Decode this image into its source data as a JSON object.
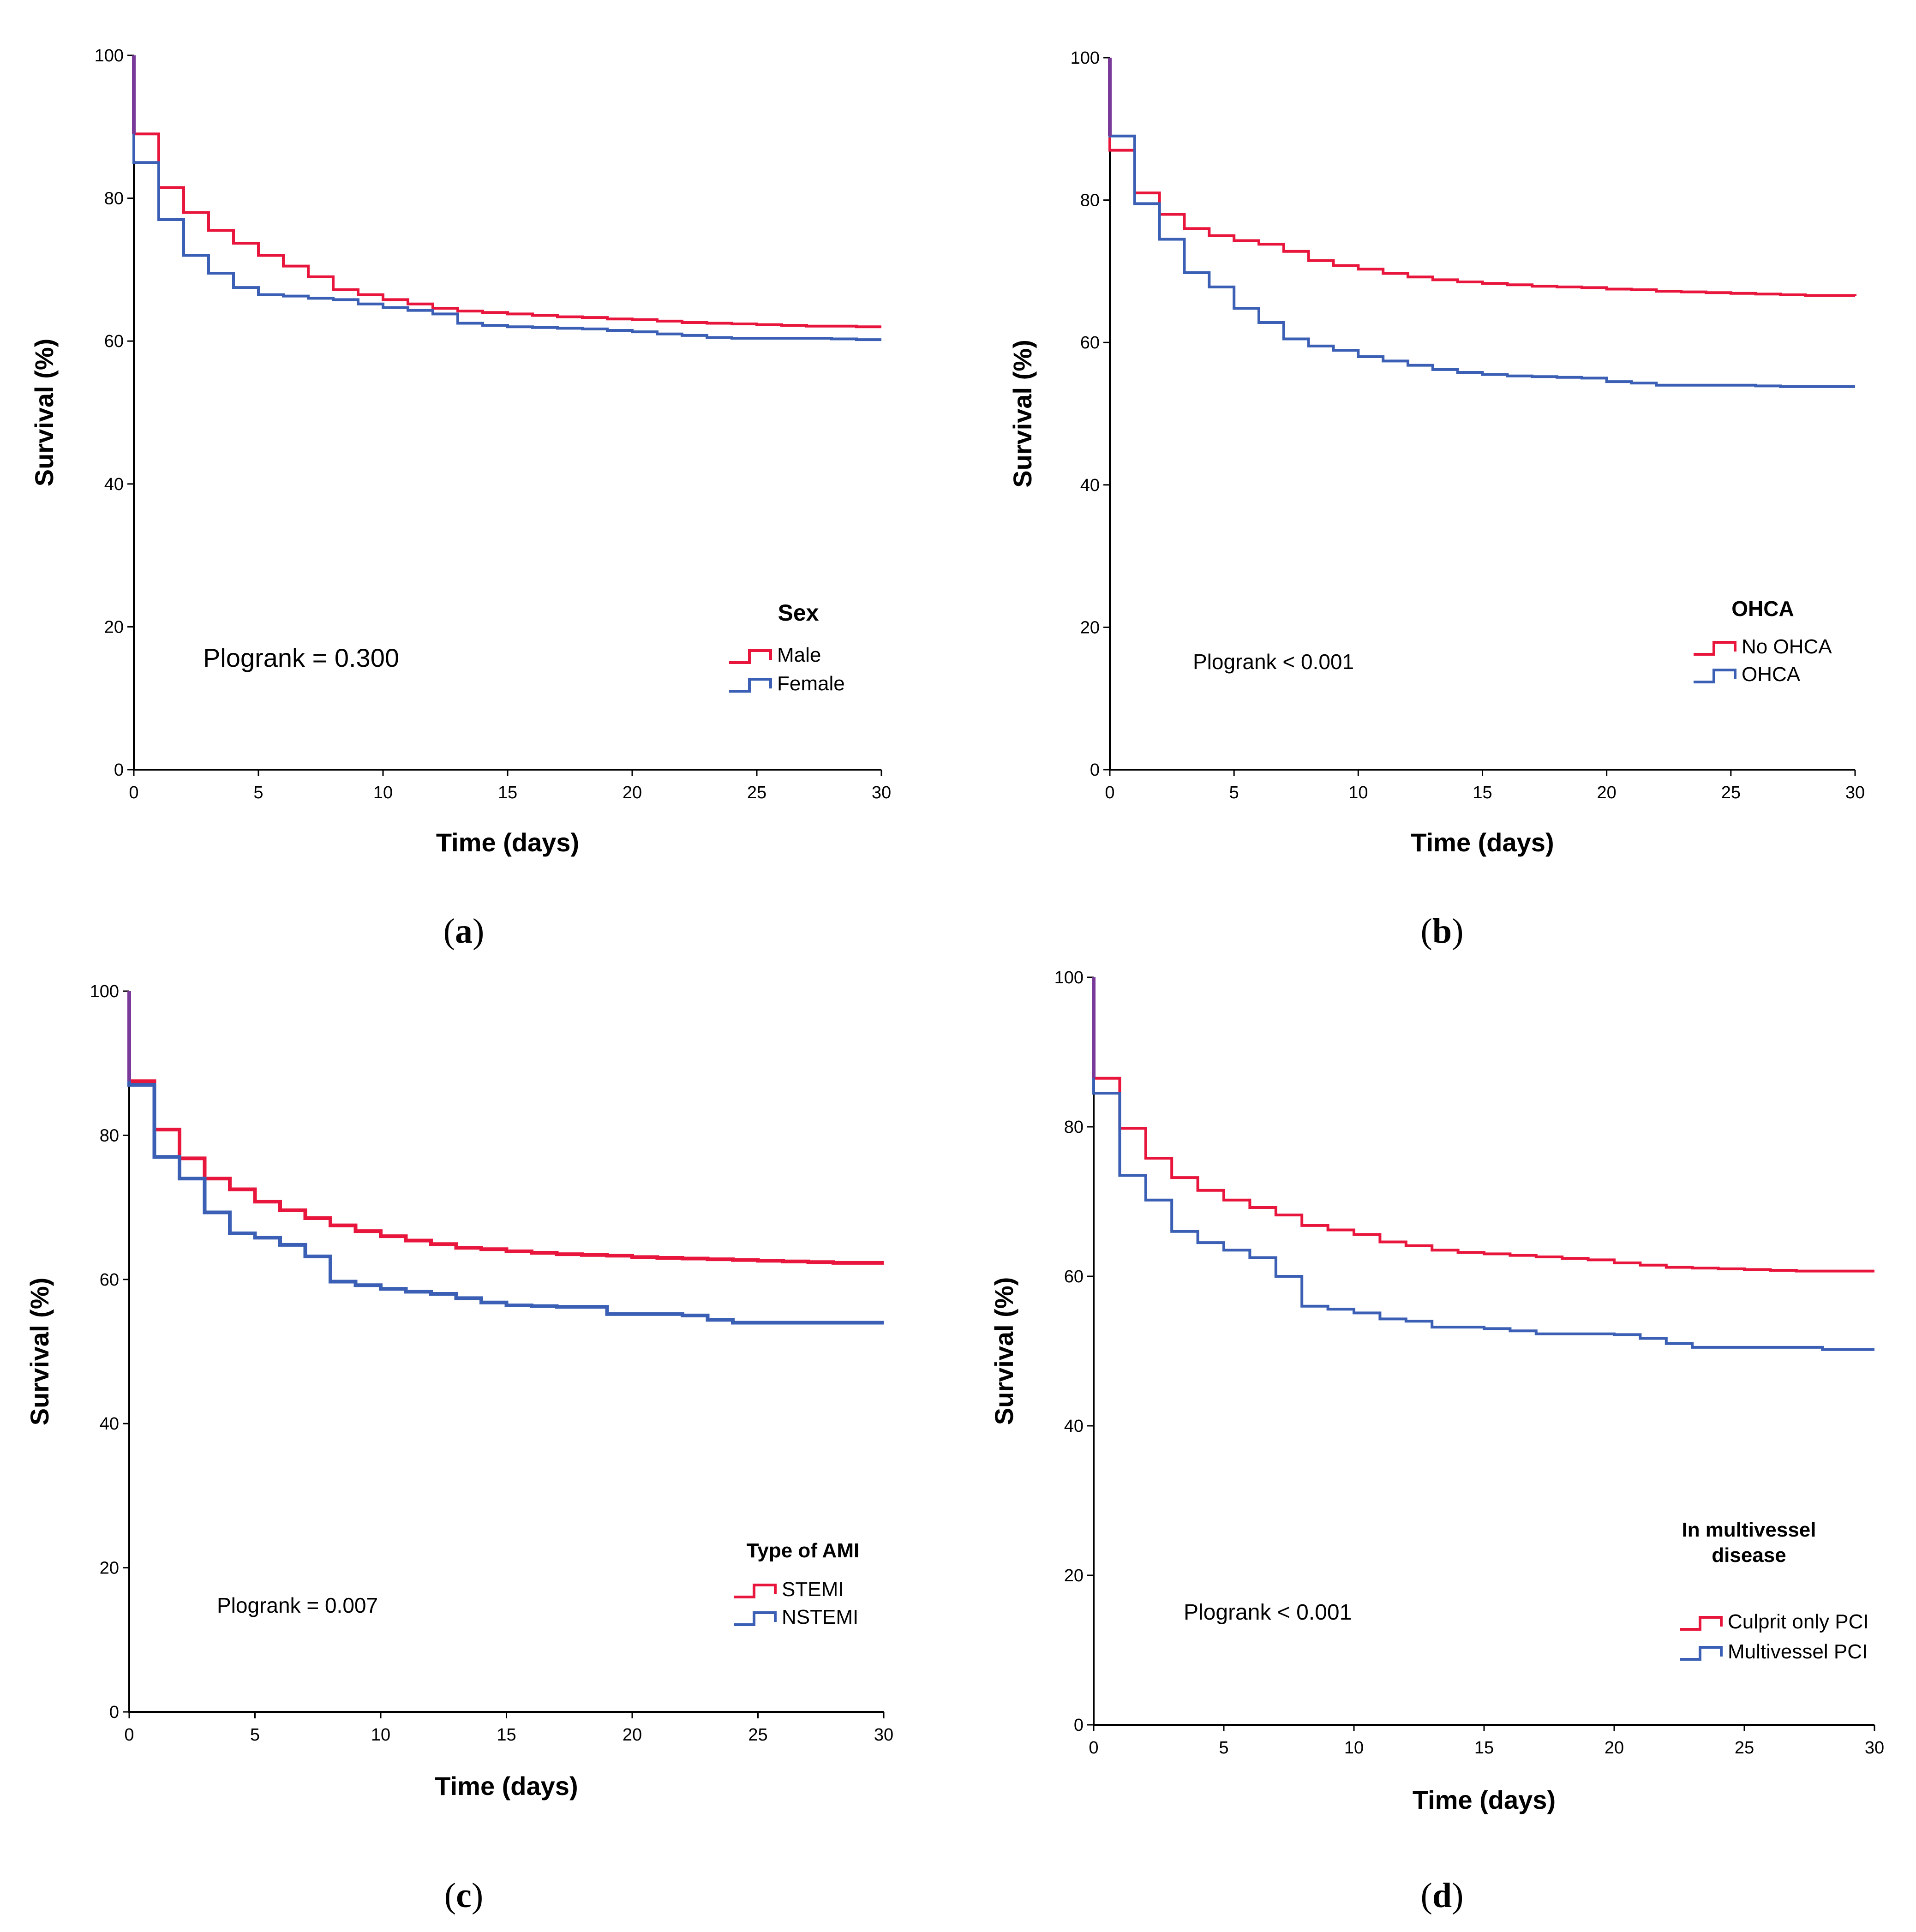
{
  "colors": {
    "red": "#E8163C",
    "blue": "#3A5FB4",
    "axis": "#000000"
  },
  "panels": [
    {
      "chart_data": {
        "type": "line",
        "subtype": "kaplan-meier-step",
        "xlabel": "Time (days)",
        "ylabel": "Survival (%)",
        "xlim": [
          0,
          30
        ],
        "ylim": [
          0,
          100
        ],
        "xticks": [
          "0",
          "5",
          "10",
          "15",
          "20",
          "25",
          "30"
        ],
        "yticks": [
          "0",
          "20",
          "40",
          "60",
          "80",
          "100"
        ],
        "legend_title": "Sex",
        "legend_position": "bottom-right",
        "annotation": "Plogrank = 0.300",
        "series": [
          {
            "name": "Male",
            "color": "red",
            "x": [
              0,
              1,
              2,
              3,
              4,
              5,
              6,
              7,
              8,
              9,
              10,
              11,
              12,
              13,
              14,
              15,
              16,
              17,
              18,
              19,
              20,
              21,
              22,
              23,
              24,
              25,
              26,
              27,
              28,
              29,
              30
            ],
            "y": [
              89,
              81.5,
              78,
              75.5,
              73.7,
              72,
              70.5,
              69,
              67.2,
              66.5,
              65.8,
              65.2,
              64.6,
              64.2,
              64,
              63.8,
              63.6,
              63.4,
              63.3,
              63.1,
              63,
              62.8,
              62.6,
              62.5,
              62.4,
              62.3,
              62.2,
              62.1,
              62.1,
              62,
              62
            ]
          },
          {
            "name": "Female",
            "color": "blue",
            "x": [
              0,
              1,
              2,
              3,
              4,
              5,
              6,
              7,
              8,
              9,
              10,
              11,
              12,
              13,
              14,
              15,
              16,
              17,
              18,
              19,
              20,
              21,
              22,
              23,
              24,
              25,
              26,
              27,
              28,
              29,
              30
            ],
            "y": [
              85,
              77,
              72,
              69.5,
              67.5,
              66.5,
              66.3,
              66,
              65.8,
              65.2,
              64.7,
              64.3,
              63.8,
              62.5,
              62.2,
              62,
              61.9,
              61.8,
              61.7,
              61.5,
              61.3,
              61,
              60.8,
              60.5,
              60.4,
              60.4,
              60.4,
              60.4,
              60.3,
              60.2,
              60.2
            ]
          }
        ]
      },
      "caption_letter": "a"
    },
    {
      "chart_data": {
        "type": "line",
        "subtype": "kaplan-meier-step",
        "xlabel": "Time (days)",
        "ylabel": "Survival (%)",
        "xlim": [
          0,
          30
        ],
        "ylim": [
          0,
          100
        ],
        "xticks": [
          "0",
          "5",
          "10",
          "15",
          "20",
          "25",
          "30"
        ],
        "yticks": [
          "0",
          "20",
          "40",
          "60",
          "80",
          "100"
        ],
        "legend_title": "OHCA",
        "legend_position": "bottom-right",
        "annotation": "Plogrank < 0.001",
        "series": [
          {
            "name": "No OHCA",
            "color": "red",
            "x": [
              0,
              1,
              2,
              3,
              4,
              5,
              6,
              7,
              8,
              9,
              10,
              11,
              12,
              13,
              14,
              15,
              16,
              17,
              18,
              19,
              20,
              21,
              22,
              23,
              24,
              25,
              26,
              27,
              28,
              29,
              30
            ],
            "y": [
              87,
              81,
              78,
              76,
              75,
              74.3,
              73.8,
              72.8,
              71.5,
              70.8,
              70.3,
              69.7,
              69.2,
              68.8,
              68.5,
              68.3,
              68.1,
              67.9,
              67.8,
              67.7,
              67.5,
              67.4,
              67.2,
              67.1,
              67,
              66.9,
              66.8,
              66.7,
              66.6,
              66.6,
              66.5
            ]
          },
          {
            "name": "OHCA",
            "color": "blue",
            "x": [
              0,
              1,
              2,
              3,
              4,
              5,
              6,
              7,
              8,
              9,
              10,
              11,
              12,
              13,
              14,
              15,
              16,
              17,
              18,
              19,
              20,
              21,
              22,
              23,
              24,
              25,
              26,
              27,
              28,
              29,
              30
            ],
            "y": [
              89,
              79.5,
              74.5,
              69.8,
              67.8,
              64.8,
              62.8,
              60.5,
              59.5,
              58.9,
              58,
              57.4,
              56.8,
              56.2,
              55.8,
              55.5,
              55.3,
              55.2,
              55.1,
              55,
              54.5,
              54.3,
              54,
              54,
              54,
              54,
              53.9,
              53.8,
              53.8,
              53.8,
              53.8
            ]
          }
        ]
      },
      "caption_letter": "b"
    },
    {
      "chart_data": {
        "type": "line",
        "subtype": "kaplan-meier-step",
        "xlabel": "Time (days)",
        "ylabel": "Survival (%)",
        "xlim": [
          0,
          30
        ],
        "ylim": [
          0,
          100
        ],
        "xticks": [
          "0",
          "5",
          "10",
          "15",
          "20",
          "25",
          "30"
        ],
        "yticks": [
          "0",
          "20",
          "40",
          "60",
          "80",
          "100"
        ],
        "legend_title": "Type of AMI",
        "legend_position": "bottom-right",
        "annotation": "Plogrank = 0.007",
        "series": [
          {
            "name": "STEMI",
            "color": "red",
            "x": [
              0,
              1,
              2,
              3,
              4,
              5,
              6,
              7,
              8,
              9,
              10,
              11,
              12,
              13,
              14,
              15,
              16,
              17,
              18,
              19,
              20,
              21,
              22,
              23,
              24,
              25,
              26,
              27,
              28,
              29,
              30
            ],
            "y": [
              87.5,
              80.8,
              76.8,
              74,
              72.5,
              70.8,
              69.6,
              68.5,
              67.5,
              66.7,
              66,
              65.4,
              64.9,
              64.4,
              64.2,
              63.9,
              63.7,
              63.5,
              63.4,
              63.3,
              63.1,
              63,
              62.9,
              62.8,
              62.7,
              62.6,
              62.5,
              62.4,
              62.3,
              62.3,
              62.3
            ]
          },
          {
            "name": "NSTEMI",
            "color": "blue",
            "x": [
              0,
              1,
              2,
              3,
              4,
              5,
              6,
              7,
              8,
              9,
              10,
              11,
              12,
              13,
              14,
              15,
              16,
              17,
              18,
              19,
              20,
              21,
              22,
              23,
              24,
              25,
              26,
              27,
              28,
              29,
              30
            ],
            "y": [
              87,
              77,
              74,
              69.3,
              66.4,
              65.8,
              64.8,
              63.2,
              59.7,
              59.2,
              58.7,
              58.3,
              58,
              57.4,
              56.8,
              56.4,
              56.3,
              56.2,
              56.2,
              55.2,
              55.2,
              55.2,
              55,
              54.4,
              54,
              54,
              54,
              54,
              54,
              54,
              54
            ]
          }
        ]
      },
      "caption_letter": "c"
    },
    {
      "chart_data": {
        "type": "line",
        "subtype": "kaplan-meier-step",
        "xlabel": "Time (days)",
        "ylabel": "Survival (%)",
        "xlim": [
          0,
          30
        ],
        "ylim": [
          0,
          100
        ],
        "xticks": [
          "0",
          "5",
          "10",
          "15",
          "20",
          "25",
          "30"
        ],
        "yticks": [
          "0",
          "20",
          "40",
          "60",
          "80",
          "100"
        ],
        "legend_title": [
          "In multivessel",
          "disease"
        ],
        "legend_position": "bottom-right",
        "annotation": "Plogrank < 0.001",
        "series": [
          {
            "name": "Culprit only PCI",
            "color": "red",
            "x": [
              0,
              1,
              2,
              3,
              4,
              5,
              6,
              7,
              8,
              9,
              10,
              11,
              12,
              13,
              14,
              15,
              16,
              17,
              18,
              19,
              20,
              21,
              22,
              23,
              24,
              25,
              26,
              27,
              28,
              29,
              30
            ],
            "y": [
              86.5,
              79.8,
              75.8,
              73.2,
              71.5,
              70.2,
              69.2,
              68.2,
              66.8,
              66.2,
              65.6,
              64.6,
              64.1,
              63.5,
              63.2,
              63,
              62.8,
              62.6,
              62.4,
              62.2,
              61.8,
              61.5,
              61.2,
              61.1,
              61,
              60.9,
              60.8,
              60.7,
              60.7,
              60.7,
              60.7
            ]
          },
          {
            "name": "Multivessel PCI",
            "color": "blue",
            "x": [
              0,
              1,
              2,
              3,
              4,
              5,
              6,
              7,
              8,
              9,
              10,
              11,
              12,
              13,
              14,
              15,
              16,
              17,
              18,
              19,
              20,
              21,
              22,
              23,
              24,
              25,
              26,
              27,
              28,
              29,
              30
            ],
            "y": [
              84.5,
              73.5,
              70.2,
              66,
              64.5,
              63.5,
              62.5,
              60,
              56,
              55.6,
              55.1,
              54.3,
              54,
              53.2,
              53.2,
              53,
              52.7,
              52.3,
              52.3,
              52.3,
              52.2,
              51.7,
              51,
              50.5,
              50.5,
              50.5,
              50.5,
              50.5,
              50.2,
              50.2,
              50.2
            ]
          }
        ]
      },
      "caption_letter": "d"
    }
  ],
  "captions": [
    "(a)",
    "(b)",
    "(c)",
    "(d)"
  ]
}
